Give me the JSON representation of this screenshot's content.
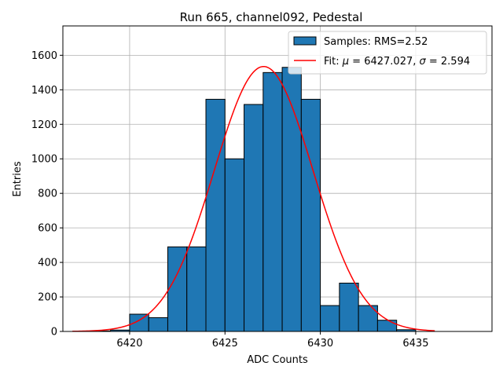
{
  "chart_data": {
    "type": "bar",
    "title": "Run 665, channel092, Pedestal",
    "xlabel": "ADC Counts",
    "ylabel": "Entries",
    "xlim": [
      6416.5,
      6439
    ],
    "ylim": [
      0,
      1770
    ],
    "xticks": [
      6420,
      6425,
      6430,
      6435
    ],
    "yticks": [
      0,
      200,
      400,
      600,
      800,
      1000,
      1200,
      1400,
      1600
    ],
    "grid": true,
    "legend_position": "top-right",
    "bar_color": "#1f77b4",
    "fit_color": "#ff0000",
    "histogram": {
      "name": "Samples: RMS=2.52",
      "bin_width": 1,
      "bin_starts": [
        6418,
        6419,
        6420,
        6421,
        6422,
        6423,
        6424,
        6425,
        6426,
        6427,
        6428,
        6429,
        6430,
        6431,
        6432,
        6433,
        6434
      ],
      "values": [
        3,
        8,
        100,
        80,
        490,
        490,
        1345,
        1000,
        1315,
        1500,
        1530,
        1345,
        150,
        280,
        150,
        65,
        10
      ]
    },
    "fit": {
      "name": "Fit: μ = 6427.027, σ = 2.594",
      "mu": 6427.027,
      "sigma": 2.594,
      "amplitude": 1535,
      "x_range": [
        6417,
        6436
      ]
    }
  },
  "legend": {
    "hist_label": "Samples: RMS=2.52",
    "fit_label_prefix": "Fit: ",
    "fit_mu_symbol": "μ",
    "fit_mu_text": " = 6427.027, ",
    "fit_sigma_symbol": "σ",
    "fit_sigma_text": " = 2.594"
  }
}
